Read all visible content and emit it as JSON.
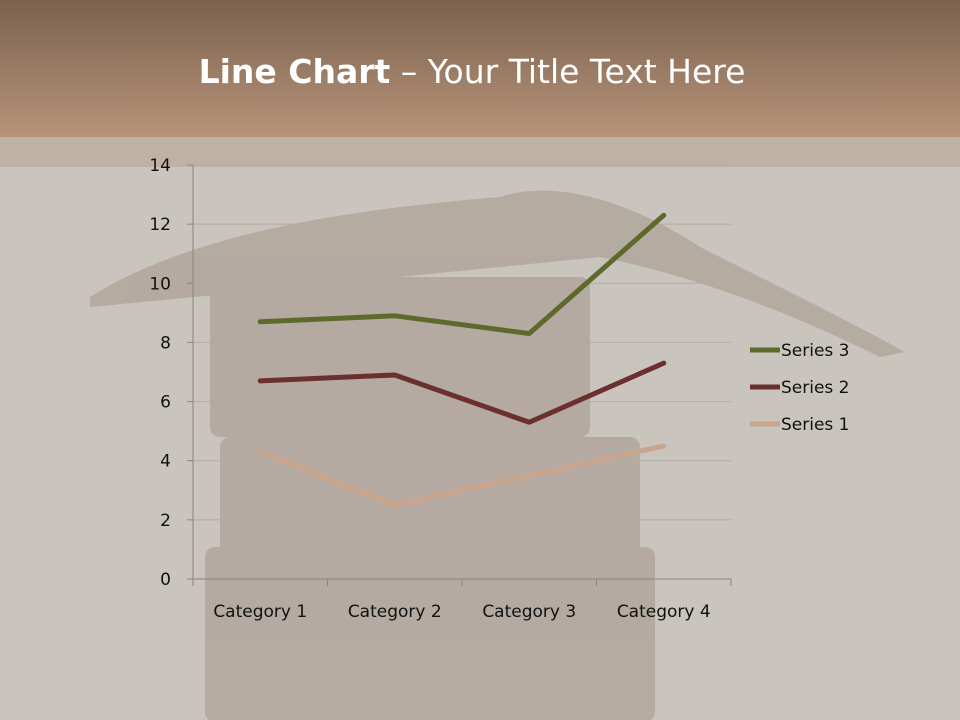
{
  "slide": {
    "title_bold": "Line Chart",
    "title_rest": " – Your Title Text Here"
  },
  "chart_data": {
    "type": "line",
    "title": "",
    "categories": [
      "Category 1",
      "Category 2",
      "Category 3",
      "Category 4"
    ],
    "series": [
      {
        "name": "Series 1",
        "values": [
          4.3,
          2.5,
          3.5,
          4.5
        ],
        "color": "#c9a68b"
      },
      {
        "name": "Series 2",
        "values": [
          6.7,
          6.9,
          5.3,
          7.3
        ],
        "color": "#6b2f2f"
      },
      {
        "name": "Series 3",
        "values": [
          8.7,
          8.9,
          8.3,
          12.3
        ],
        "color": "#5e6a2c"
      }
    ],
    "ylim": [
      0,
      14
    ],
    "yticks": [
      "0",
      "2",
      "4",
      "6",
      "8",
      "10",
      "12",
      "14"
    ],
    "grid": true,
    "legend": "right"
  },
  "colors": {
    "header": "#a3826b",
    "background": "#c9c4be"
  }
}
